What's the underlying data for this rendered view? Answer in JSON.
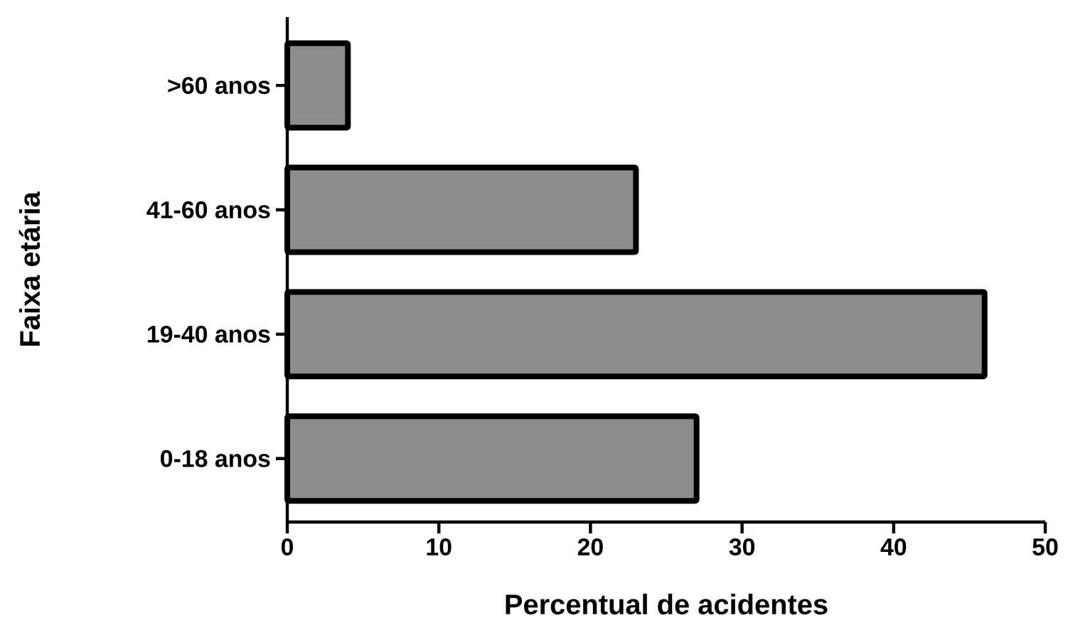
{
  "chart_data": {
    "type": "bar",
    "orientation": "horizontal",
    "xlabel": "Percentual de acidentes",
    "ylabel": "Faixa etária",
    "categories": [
      ">60 anos",
      "41-60 anos",
      "19-40 anos",
      "0-18 anos"
    ],
    "values": [
      4,
      23,
      46,
      27
    ],
    "color": "#000000",
    "xlim": [
      0,
      50
    ],
    "xticks": [
      0,
      10,
      20,
      30,
      40,
      50
    ]
  }
}
